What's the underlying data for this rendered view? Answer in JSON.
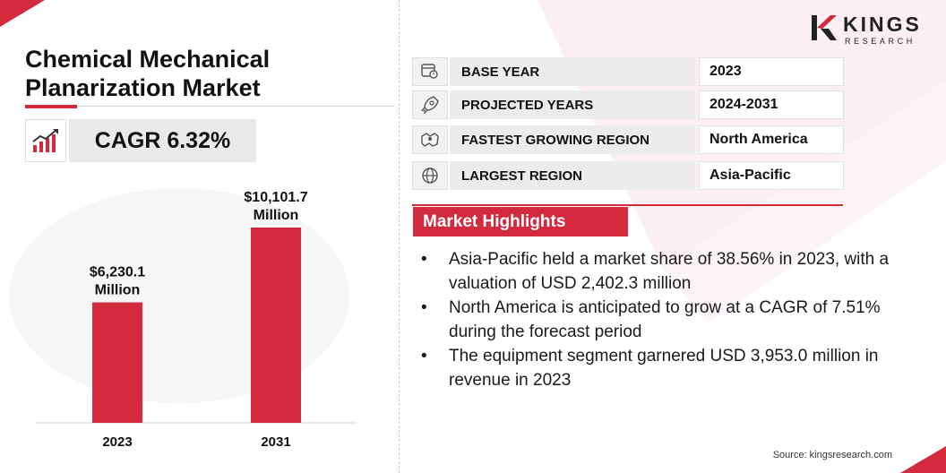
{
  "brand": {
    "name": "KINGS",
    "sub": "RESEARCH",
    "accent": "#d42a3e"
  },
  "title": "Chemical Mechanical Planarization Market",
  "cagr": "CAGR 6.32%",
  "info": [
    {
      "icon": "calendar-icon",
      "label": "BASE YEAR",
      "value": "2023"
    },
    {
      "icon": "rocket-icon",
      "label": "PROJECTED YEARS",
      "value": "2024-2031"
    },
    {
      "icon": "region-map-icon",
      "label": "FASTEST GROWING REGION",
      "value": "North America"
    },
    {
      "icon": "globe-icon",
      "label": "LARGEST REGION",
      "value": "Asia-Pacific"
    }
  ],
  "highlights": {
    "title": "Market Highlights",
    "items": [
      "Asia-Pacific held a market share of 38.56% in 2023, with a valuation of USD 2,402.3 million",
      "North America is anticipated to grow at a CAGR of 7.51% during the forecast period",
      "The equipment segment garnered USD 3,953.0 million in revenue in 2023"
    ]
  },
  "source": "Source: kingsresearch.com",
  "chart_data": {
    "type": "bar",
    "categories": [
      "2023",
      "2031"
    ],
    "values": [
      6230.1,
      10101.7
    ],
    "labels": [
      "$6,230.1 Million",
      "$10,101.7 Million"
    ],
    "title": "",
    "xlabel": "",
    "ylabel": "",
    "bar_color": "#d42a3e",
    "grid": false
  }
}
